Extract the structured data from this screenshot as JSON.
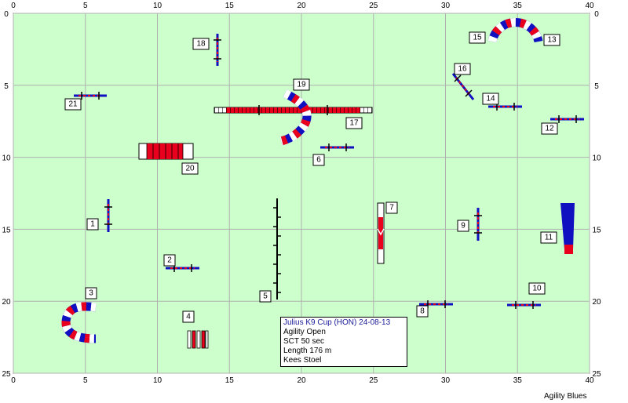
{
  "course": {
    "x_range": [
      0,
      40
    ],
    "y_range": [
      0,
      25
    ],
    "x_ticks": [
      "0",
      "5",
      "10",
      "15",
      "20",
      "25",
      "30",
      "35",
      "40"
    ],
    "y_ticks": [
      "0",
      "5",
      "10",
      "15",
      "20",
      "25"
    ],
    "colors": {
      "field": "#ccffcc",
      "grid": "#b0b0b0",
      "red": "#e8001c",
      "blue": "#1010c0",
      "dark": "#000000"
    },
    "obstacles": [
      {
        "number": "1",
        "type": "jump"
      },
      {
        "number": "2",
        "type": "jump"
      },
      {
        "number": "3",
        "type": "tunnel"
      },
      {
        "number": "4",
        "type": "tire"
      },
      {
        "number": "5",
        "type": "weave-poles"
      },
      {
        "number": "6",
        "type": "jump"
      },
      {
        "number": "7",
        "type": "a-frame"
      },
      {
        "number": "8",
        "type": "jump"
      },
      {
        "number": "9",
        "type": "jump"
      },
      {
        "number": "10",
        "type": "jump"
      },
      {
        "number": "11",
        "type": "table"
      },
      {
        "number": "12",
        "type": "jump"
      },
      {
        "number": "13",
        "type": "tunnel"
      },
      {
        "number": "14",
        "type": "jump"
      },
      {
        "number": "15",
        "type": "tunnel"
      },
      {
        "number": "16",
        "type": "jump"
      },
      {
        "number": "17",
        "type": "dog-walk"
      },
      {
        "number": "18",
        "type": "jump"
      },
      {
        "number": "19",
        "type": "tunnel"
      },
      {
        "number": "20",
        "type": "chute"
      },
      {
        "number": "21",
        "type": "jump"
      }
    ]
  },
  "info": {
    "title": "Julius K9 Cup (HON) 24-08-13",
    "class": "Agility Open",
    "sct": "SCT 50 sec",
    "length": "Length 176 m",
    "judge": "Kees Stoel"
  },
  "brand": "Agility Blues"
}
